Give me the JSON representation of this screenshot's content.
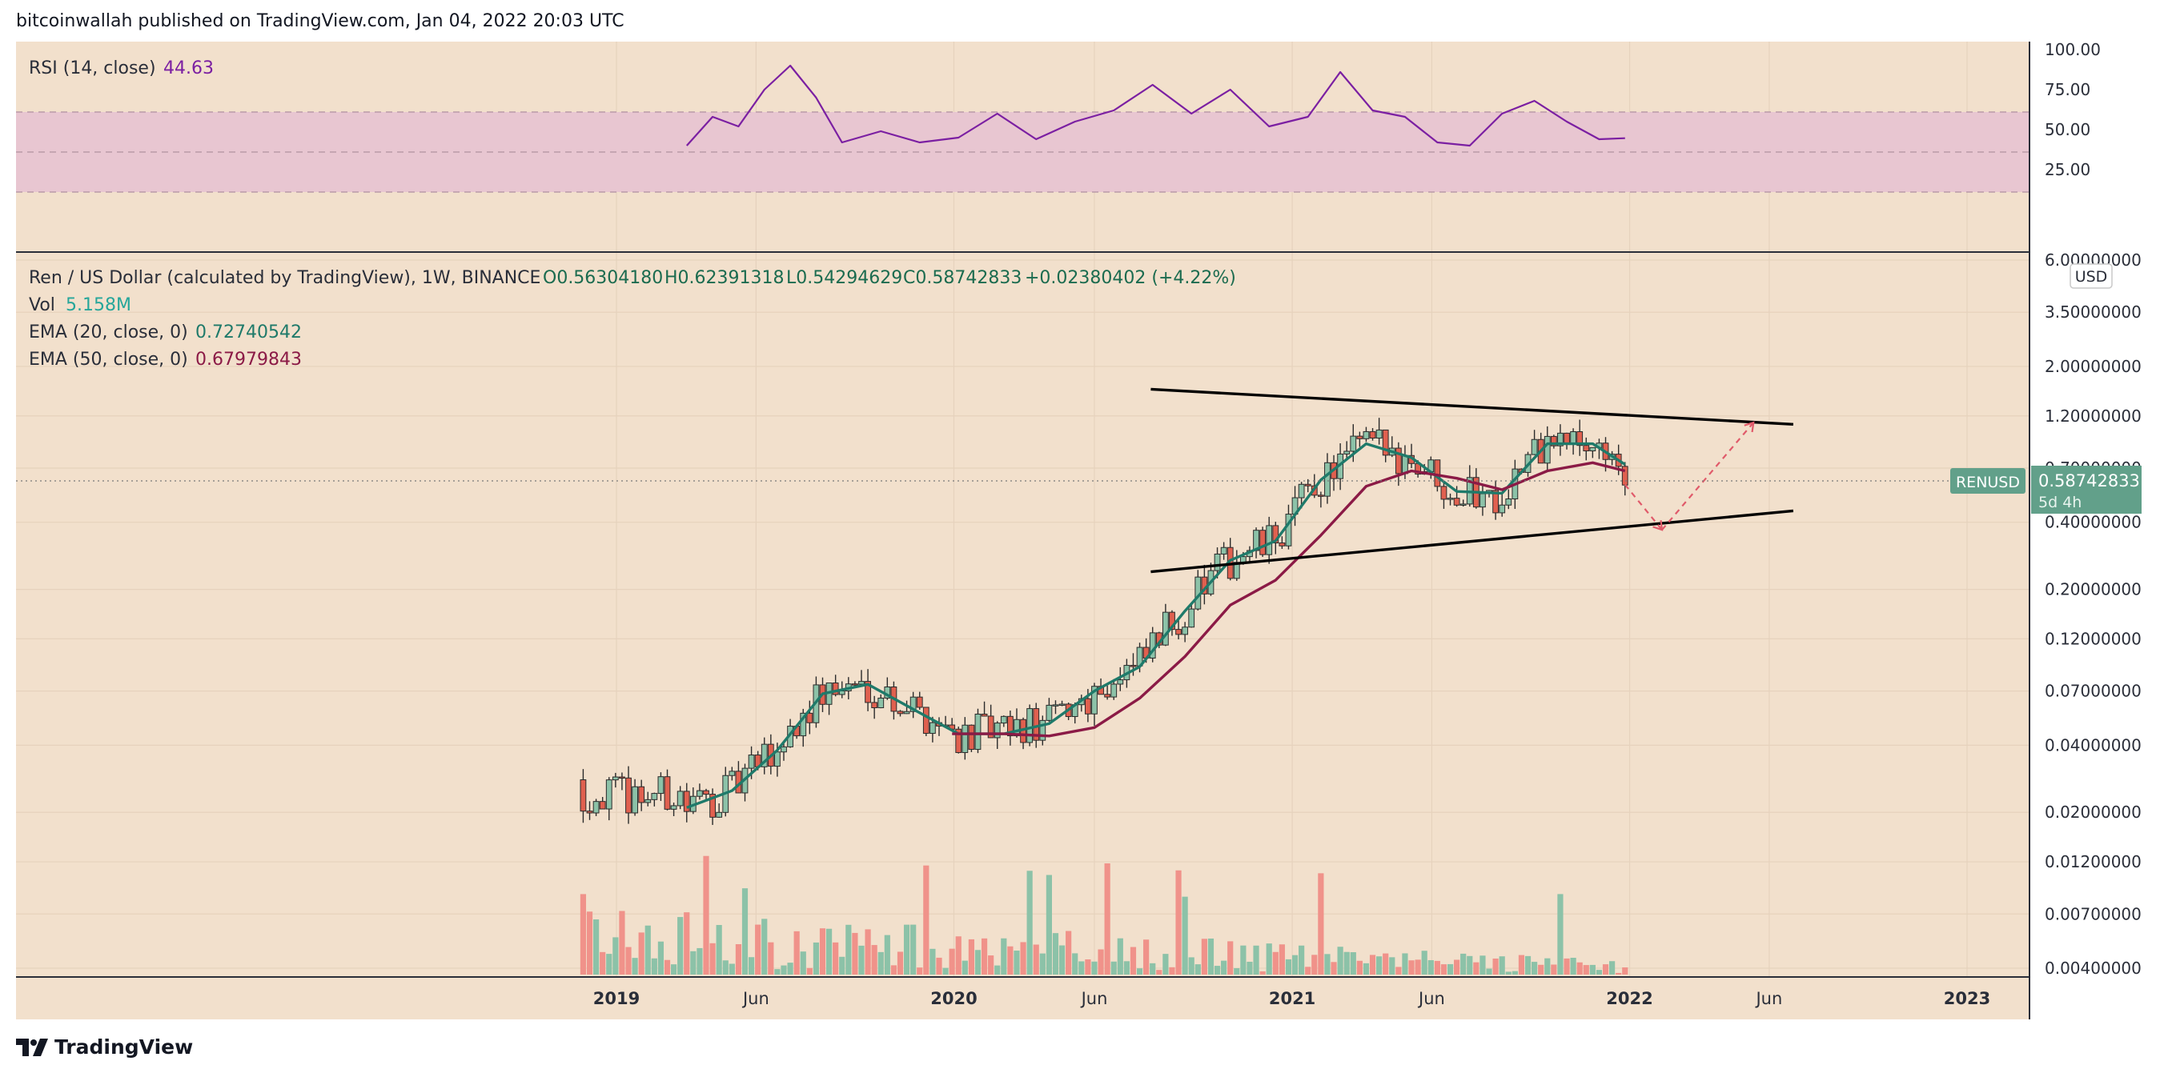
{
  "header": {
    "published": "bitcoinwallah published on TradingView.com, Jan 04, 2022 20:03 UTC"
  },
  "footer": {
    "brand": "TradingView"
  },
  "colors": {
    "background": "#f2e0cc",
    "rsi_band": "#e8c6d1",
    "rsi_line": "#7b1fa2",
    "candle_up": "#8cc2a8",
    "candle_down": "#e0604f",
    "ema20": "#1f7a6a",
    "ema50": "#8b1a46",
    "vol_up": "#8cc2a8",
    "vol_down": "#f0928a",
    "trendline": "#000000",
    "projection": "#e05a6a",
    "price_tag": "#62a08a"
  },
  "rsi_panel": {
    "title": "RSI (14, close)",
    "value": "44.63",
    "ticks": [
      "100.00",
      "75.00",
      "50.00",
      "25.00"
    ],
    "band": [
      30,
      70
    ]
  },
  "price_panel": {
    "legend": {
      "symbol": "Ren / US Dollar (calculated by TradingView), 1W, BINANCE",
      "open": "O0.56304180",
      "high": "H0.62391318",
      "low": "L0.54294629",
      "close": "C0.58742833",
      "change": "+0.02380402 (+4.22%)",
      "vol_label": "Vol",
      "vol_value": "5.158M",
      "ema20_label": "EMA (20, close, 0)",
      "ema20_value": "0.72740542",
      "ema50_label": "EMA (50, close, 0)",
      "ema50_value": "0.67979843"
    },
    "currency": "USD",
    "ticks": [
      "6.00000000",
      "3.50000000",
      "2.00000000",
      "1.20000000",
      "0.70000000",
      "0.40000000",
      "0.20000000",
      "0.12000000",
      "0.07000000",
      "0.04000000",
      "0.02000000",
      "0.01200000",
      "0.00700000",
      "0.00400000"
    ],
    "price_tag": {
      "symbol": "RENUSD",
      "value": "0.58742833",
      "countdown": "5d 4h"
    }
  },
  "x_axis": {
    "labels": [
      {
        "text": "2019",
        "bold": true,
        "date": "2019-01-01"
      },
      {
        "text": "Jun",
        "bold": false,
        "date": "2019-06-01"
      },
      {
        "text": "2020",
        "bold": true,
        "date": "2020-01-01"
      },
      {
        "text": "Jun",
        "bold": false,
        "date": "2020-06-01"
      },
      {
        "text": "2021",
        "bold": true,
        "date": "2021-01-01"
      },
      {
        "text": "Jun",
        "bold": false,
        "date": "2021-06-01"
      },
      {
        "text": "2022",
        "bold": true,
        "date": "2022-01-01"
      },
      {
        "text": "Jun",
        "bold": false,
        "date": "2022-06-01"
      },
      {
        "text": "2023",
        "bold": true,
        "date": "2023-01-01"
      }
    ]
  },
  "chart_data": {
    "type": "line",
    "scale": "log",
    "grid": true,
    "series": [
      {
        "name": "EMA (20, close, 0)",
        "x": [
          "2019-03-18",
          "2019-05-06",
          "2019-06-24",
          "2019-08-12",
          "2019-09-30",
          "2019-11-18",
          "2020-01-06",
          "2020-02-24",
          "2020-04-13",
          "2020-06-01",
          "2020-07-20",
          "2020-09-07",
          "2020-10-26",
          "2020-12-14",
          "2021-02-01",
          "2021-03-22",
          "2021-05-10",
          "2021-06-28",
          "2021-08-16",
          "2021-10-04",
          "2021-11-22",
          "2021-12-27"
        ],
        "values": [
          0.021,
          0.025,
          0.038,
          0.068,
          0.075,
          0.058,
          0.045,
          0.045,
          0.05,
          0.07,
          0.09,
          0.16,
          0.27,
          0.33,
          0.62,
          0.9,
          0.78,
          0.55,
          0.54,
          0.9,
          0.9,
          0.727
        ]
      },
      {
        "name": "EMA (50, close, 0)",
        "x": [
          "2019-12-30",
          "2020-02-24",
          "2020-04-13",
          "2020-06-01",
          "2020-07-20",
          "2020-09-07",
          "2020-10-26",
          "2020-12-14",
          "2021-02-01",
          "2021-03-22",
          "2021-05-10",
          "2021-06-28",
          "2021-08-16",
          "2021-10-04",
          "2021-11-22",
          "2021-12-27"
        ],
        "values": [
          0.045,
          0.045,
          0.044,
          0.048,
          0.065,
          0.1,
          0.17,
          0.22,
          0.35,
          0.58,
          0.68,
          0.63,
          0.56,
          0.68,
          0.74,
          0.68
        ]
      },
      {
        "name": "RSI (14, close)",
        "x": [
          "2019-03-18",
          "2019-04-15",
          "2019-05-13",
          "2019-06-10",
          "2019-07-08",
          "2019-08-05",
          "2019-09-02",
          "2019-10-14",
          "2019-11-25",
          "2020-01-06",
          "2020-02-17",
          "2020-03-30",
          "2020-05-11",
          "2020-06-22",
          "2020-08-03",
          "2020-09-14",
          "2020-10-26",
          "2020-12-07",
          "2021-01-18",
          "2021-02-22",
          "2021-03-29",
          "2021-05-03",
          "2021-06-07",
          "2021-07-12",
          "2021-08-16",
          "2021-09-20",
          "2021-10-25",
          "2021-11-29",
          "2021-12-27"
        ],
        "values": [
          40,
          58,
          52,
          75,
          90,
          70,
          42,
          49,
          42,
          45,
          60,
          44,
          55,
          62,
          78,
          60,
          75,
          52,
          58,
          86,
          62,
          58,
          42,
          40,
          60,
          68,
          55,
          44,
          44.63
        ]
      }
    ],
    "trendlines": [
      {
        "name": "upper",
        "x": [
          "2020-08-01",
          "2022-06-27"
        ],
        "y": [
          1.58,
          1.1
        ]
      },
      {
        "name": "lower",
        "x": [
          "2020-08-01",
          "2022-06-27"
        ],
        "y": [
          0.24,
          0.45
        ]
      }
    ],
    "projection": {
      "x": [
        "2021-12-27",
        "2022-02-05",
        "2022-05-15"
      ],
      "y": [
        0.59,
        0.37,
        1.12
      ]
    }
  }
}
